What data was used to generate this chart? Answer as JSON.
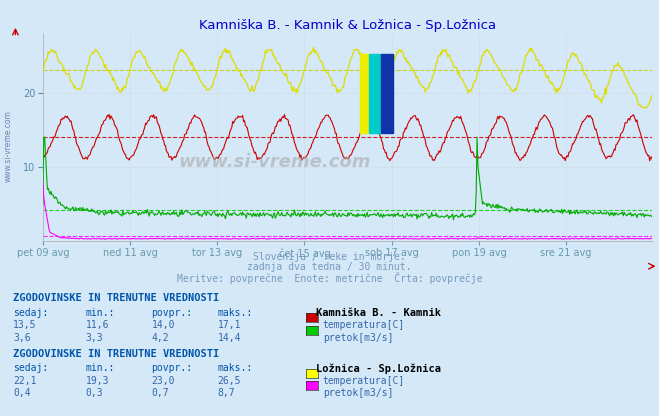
{
  "title": "Kamniška B. - Kamnik & Ložnica - Sp.Ložnica",
  "title_color": "#0000cc",
  "bg_color": "#d4e8f8",
  "grid_color": "#dddddd",
  "xtick_labels": [
    "pet 09 avg",
    "ned 11 avg",
    "tor 13 avg",
    "čet 15 avg",
    "sob 17 avg",
    "pon 19 avg",
    "sre 21 avg"
  ],
  "xtick_positions": [
    0,
    96,
    192,
    288,
    384,
    480,
    576
  ],
  "ylim": [
    0,
    28
  ],
  "yticks": [
    10,
    20
  ],
  "num_points": 672,
  "subtitle_lines": [
    "Slovenija / reke in morje.",
    "zadnja dva tedna / 30 minut.",
    "Meritve: povprečne  Enote: metrične  Črta: povprečje"
  ],
  "subtitle_color": "#7799bb",
  "section1_title": "ZGODOVINSKE IN TRENUTNE VREDNOSTI",
  "section1_station": "Kamniška B. - Kamnik",
  "section1_rows": [
    {
      "sedaj": "13,5",
      "min": "11,6",
      "povpr": "14,0",
      "maks": "17,1",
      "color": "#cc0000",
      "label": "temperatura[C]"
    },
    {
      "sedaj": "3,6",
      "min": "3,3",
      "povpr": "4,2",
      "maks": "14,4",
      "color": "#00cc00",
      "label": "pretok[m3/s]"
    }
  ],
  "section2_title": "ZGODOVINSKE IN TRENUTNE VREDNOSTI",
  "section2_station": "Ložnica - Sp.Ložnica",
  "section2_rows": [
    {
      "sedaj": "22,1",
      "min": "19,3",
      "povpr": "23,0",
      "maks": "26,5",
      "color": "#ffff00",
      "label": "temperatura[C]"
    },
    {
      "sedaj": "0,4",
      "min": "0,3",
      "povpr": "0,7",
      "maks": "8,7",
      "color": "#ff00ff",
      "label": "pretok[m3/s]"
    }
  ],
  "watermark": "www.si-vreme.com",
  "avg_lines": {
    "kamnik_temp": 14.0,
    "kamnik_pretok": 4.2,
    "loznica_temp": 23.0,
    "loznica_pretok": 0.7
  },
  "avg_line_colors": {
    "kamnik_temp": "#cc0000",
    "kamnik_pretok": "#00cc00",
    "loznica_temp": "#cccc00",
    "loznica_pretok": "#ff00ff"
  },
  "line_colors": {
    "kamnik_temp": "#cc0000",
    "kamnik_pretok": "#00aa00",
    "loznica_temp": "#dddd00",
    "loznica_pretok": "#ff00ff"
  }
}
